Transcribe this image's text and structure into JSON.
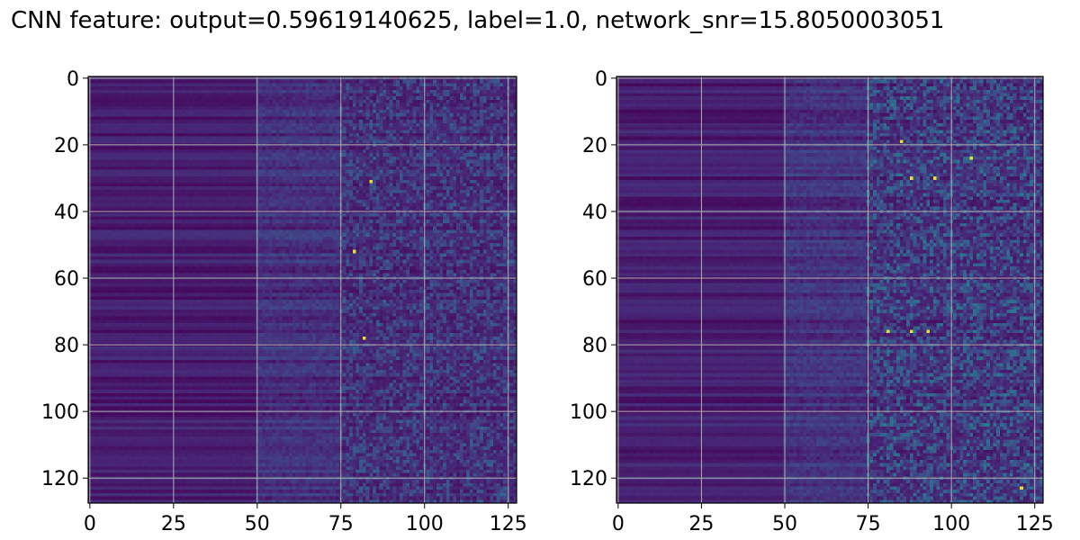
{
  "title": "CNN feature: output=0.59619140625, label=1.0, network_snr=15.8050003051",
  "chart_data": [
    {
      "type": "heatmap",
      "colormap": "viridis",
      "shape": [
        128,
        128
      ],
      "xlim": [
        0,
        127
      ],
      "ylim": [
        127,
        0
      ],
      "xticks": [
        "0",
        "25",
        "50",
        "75",
        "100",
        "125"
      ],
      "yticks": [
        "0",
        "20",
        "40",
        "60",
        "80",
        "100",
        "120"
      ],
      "grid": true,
      "bright_points": [
        {
          "x": 84,
          "y": 31
        },
        {
          "x": 79,
          "y": 52
        },
        {
          "x": 82,
          "y": 78
        }
      ]
    },
    {
      "type": "heatmap",
      "colormap": "viridis",
      "shape": [
        128,
        128
      ],
      "xlim": [
        0,
        127
      ],
      "ylim": [
        127,
        0
      ],
      "xticks": [
        "0",
        "25",
        "50",
        "75",
        "100",
        "125"
      ],
      "yticks": [
        "0",
        "20",
        "40",
        "60",
        "80",
        "100",
        "120"
      ],
      "grid": true,
      "bright_points": [
        {
          "x": 88,
          "y": 30
        },
        {
          "x": 88,
          "y": 76
        },
        {
          "x": 93,
          "y": 76
        },
        {
          "x": 81,
          "y": 76
        },
        {
          "x": 85,
          "y": 19
        },
        {
          "x": 95,
          "y": 30
        },
        {
          "x": 106,
          "y": 24
        },
        {
          "x": 121,
          "y": 123
        }
      ]
    }
  ]
}
